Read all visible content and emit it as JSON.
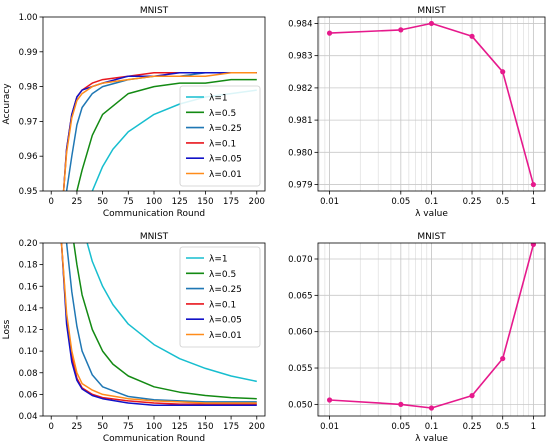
{
  "colors": {
    "lambda_1": "#17becf",
    "lambda_0_5": "#138a13",
    "lambda_0_25": "#1f77b4",
    "lambda_0_1": "#e8171e",
    "lambda_0_05": "#1212c8",
    "lambda_0_01": "#ff8c1a",
    "lambda_curve": "#e6198c"
  },
  "legend_labels": [
    "λ=1",
    "λ=0.5",
    "λ=0.25",
    "λ=0.1",
    "λ=0.05",
    "λ=0.01"
  ],
  "chart_data": [
    {
      "id": "acc-rounds",
      "type": "line",
      "title": "MNIST",
      "xlabel": "Communication Round",
      "ylabel": "Accuracy",
      "xlim": [
        -8,
        208
      ],
      "ylim": [
        0.95,
        1.0
      ],
      "xticks": [
        0,
        25,
        50,
        75,
        100,
        125,
        150,
        175,
        200
      ],
      "yticks": [
        0.95,
        0.96,
        0.97,
        0.98,
        0.99,
        1.0
      ],
      "ytick_labels": [
        "0.95",
        "0.96",
        "0.97",
        "0.98",
        "0.99",
        "1.00"
      ],
      "legend": "lower-right",
      "grid": false,
      "series": [
        {
          "name": "λ=1",
          "x": [
            40,
            50,
            60,
            75,
            100,
            125,
            150,
            175,
            200
          ],
          "y": [
            0.95,
            0.957,
            0.962,
            0.967,
            0.972,
            0.975,
            0.977,
            0.978,
            0.979
          ]
        },
        {
          "name": "λ=0.5",
          "x": [
            25,
            30,
            40,
            50,
            75,
            100,
            125,
            150,
            175,
            200
          ],
          "y": [
            0.95,
            0.956,
            0.966,
            0.972,
            0.978,
            0.98,
            0.981,
            0.981,
            0.982,
            0.982
          ]
        },
        {
          "name": "λ=0.25",
          "x": [
            15,
            20,
            25,
            30,
            40,
            50,
            75,
            100,
            125,
            150,
            175,
            200
          ],
          "y": [
            0.95,
            0.96,
            0.969,
            0.974,
            0.978,
            0.98,
            0.982,
            0.983,
            0.983,
            0.984,
            0.984,
            0.984
          ]
        },
        {
          "name": "λ=0.1",
          "x": [
            12,
            15,
            20,
            25,
            30,
            40,
            50,
            75,
            100,
            125,
            150,
            175,
            200
          ],
          "y": [
            0.95,
            0.962,
            0.972,
            0.977,
            0.979,
            0.981,
            0.982,
            0.983,
            0.984,
            0.984,
            0.984,
            0.984,
            0.984
          ]
        },
        {
          "name": "λ=0.05",
          "x": [
            12,
            15,
            20,
            25,
            30,
            40,
            50,
            75,
            100,
            125,
            150,
            175,
            200
          ],
          "y": [
            0.95,
            0.962,
            0.972,
            0.977,
            0.979,
            0.98,
            0.981,
            0.983,
            0.983,
            0.984,
            0.984,
            0.984,
            0.984
          ]
        },
        {
          "name": "λ=0.01",
          "x": [
            12,
            15,
            20,
            25,
            30,
            40,
            50,
            75,
            100,
            125,
            150,
            175,
            200
          ],
          "y": [
            0.95,
            0.961,
            0.971,
            0.976,
            0.978,
            0.98,
            0.981,
            0.982,
            0.983,
            0.983,
            0.983,
            0.984,
            0.984
          ]
        }
      ]
    },
    {
      "id": "acc-lambda",
      "type": "line",
      "title": "MNIST",
      "xlabel": "λ value",
      "ylabel": "",
      "xscale": "log",
      "xlim": [
        0.0077,
        1.3
      ],
      "ylim": [
        0.9788,
        0.9842
      ],
      "xticks": [
        0.01,
        0.05,
        0.1,
        0.25,
        0.5,
        1
      ],
      "xtick_labels": [
        "0.01",
        "0.05",
        "0.1",
        "0.25",
        "0.5",
        "1"
      ],
      "yticks": [
        0.979,
        0.98,
        0.981,
        0.982,
        0.983,
        0.984
      ],
      "ytick_labels": [
        "0.979",
        "0.980",
        "0.981",
        "0.982",
        "0.983",
        "0.984"
      ],
      "grid": true,
      "series": [
        {
          "x": [
            0.01,
            0.05,
            0.1,
            0.25,
            0.5,
            1
          ],
          "y": [
            0.9837,
            0.9838,
            0.984,
            0.9836,
            0.9825,
            0.979
          ]
        }
      ]
    },
    {
      "id": "loss-rounds",
      "type": "line",
      "title": "MNIST",
      "xlabel": "Communication Round",
      "ylabel": "Loss",
      "xlim": [
        -8,
        208
      ],
      "ylim": [
        0.04,
        0.2
      ],
      "xticks": [
        0,
        25,
        50,
        75,
        100,
        125,
        150,
        175,
        200
      ],
      "yticks": [
        0.04,
        0.06,
        0.08,
        0.1,
        0.12,
        0.14,
        0.16,
        0.18,
        0.2
      ],
      "ytick_labels": [
        "0.04",
        "0.06",
        "0.08",
        "0.10",
        "0.12",
        "0.14",
        "0.16",
        "0.18",
        "0.20"
      ],
      "legend": "upper-right",
      "grid": false,
      "series": [
        {
          "name": "λ=1",
          "x": [
            35,
            40,
            50,
            60,
            75,
            100,
            125,
            150,
            175,
            200
          ],
          "y": [
            0.2,
            0.183,
            0.16,
            0.143,
            0.125,
            0.106,
            0.093,
            0.084,
            0.077,
            0.072
          ]
        },
        {
          "name": "λ=0.5",
          "x": [
            22,
            25,
            30,
            40,
            50,
            60,
            75,
            100,
            125,
            150,
            175,
            200
          ],
          "y": [
            0.2,
            0.18,
            0.152,
            0.12,
            0.1,
            0.088,
            0.077,
            0.067,
            0.062,
            0.059,
            0.057,
            0.056
          ]
        },
        {
          "name": "λ=0.25",
          "x": [
            15,
            20,
            25,
            30,
            40,
            50,
            75,
            100,
            125,
            150,
            175,
            200
          ],
          "y": [
            0.2,
            0.155,
            0.123,
            0.1,
            0.078,
            0.067,
            0.058,
            0.055,
            0.054,
            0.053,
            0.053,
            0.053
          ]
        },
        {
          "name": "λ=0.1",
          "x": [
            10,
            15,
            20,
            25,
            30,
            40,
            50,
            75,
            100,
            125,
            150,
            175,
            200
          ],
          "y": [
            0.2,
            0.13,
            0.095,
            0.075,
            0.066,
            0.06,
            0.057,
            0.054,
            0.052,
            0.051,
            0.051,
            0.051,
            0.051
          ]
        },
        {
          "name": "λ=0.05",
          "x": [
            10,
            15,
            20,
            25,
            30,
            40,
            50,
            75,
            100,
            125,
            150,
            175,
            200
          ],
          "y": [
            0.2,
            0.125,
            0.09,
            0.073,
            0.065,
            0.059,
            0.056,
            0.052,
            0.05,
            0.05,
            0.05,
            0.05,
            0.05
          ]
        },
        {
          "name": "λ=0.01",
          "x": [
            10,
            15,
            20,
            25,
            30,
            40,
            50,
            75,
            100,
            125,
            150,
            175,
            200
          ],
          "y": [
            0.2,
            0.135,
            0.1,
            0.08,
            0.07,
            0.064,
            0.06,
            0.056,
            0.054,
            0.053,
            0.052,
            0.052,
            0.052
          ]
        }
      ]
    },
    {
      "id": "loss-lambda",
      "type": "line",
      "title": "MNIST",
      "xlabel": "λ value",
      "ylabel": "",
      "xscale": "log",
      "xlim": [
        0.0077,
        1.3
      ],
      "ylim": [
        0.0484,
        0.0722
      ],
      "xticks": [
        0.01,
        0.05,
        0.1,
        0.25,
        0.5,
        1
      ],
      "xtick_labels": [
        "0.01",
        "0.05",
        "0.1",
        "0.25",
        "0.5",
        "1"
      ],
      "yticks": [
        0.05,
        0.055,
        0.06,
        0.065,
        0.07
      ],
      "ytick_labels": [
        "0.050",
        "0.055",
        "0.060",
        "0.065",
        "0.070"
      ],
      "grid": true,
      "series": [
        {
          "x": [
            0.01,
            0.05,
            0.1,
            0.25,
            0.5,
            1
          ],
          "y": [
            0.0506,
            0.05,
            0.0495,
            0.0512,
            0.0563,
            0.072
          ]
        }
      ]
    }
  ]
}
